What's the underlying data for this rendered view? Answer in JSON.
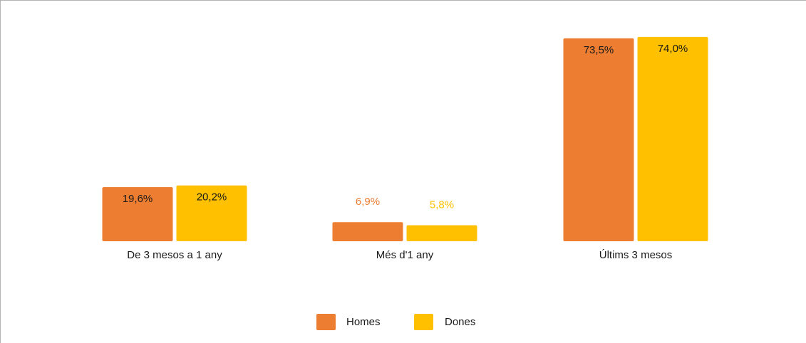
{
  "chart_data": {
    "type": "bar",
    "categories": [
      "De 3 mesos a 1 any",
      "Més d'1 any",
      "Últims 3 mesos"
    ],
    "series": [
      {
        "name": "Homes",
        "values": [
          19.6,
          6.9,
          73.5
        ],
        "labels": [
          "19,6%",
          "6,9%",
          "73,5%"
        ],
        "color": "#ED7D31"
      },
      {
        "name": "Dones",
        "values": [
          20.2,
          5.8,
          74.0
        ],
        "labels": [
          "20,2%",
          "5,8%",
          "74,0%"
        ],
        "color": "#FFC000"
      }
    ],
    "ylim": [
      0,
      75
    ],
    "grid": false,
    "legend_position": "bottom-center",
    "title": "",
    "xlabel": "",
    "ylabel": ""
  }
}
